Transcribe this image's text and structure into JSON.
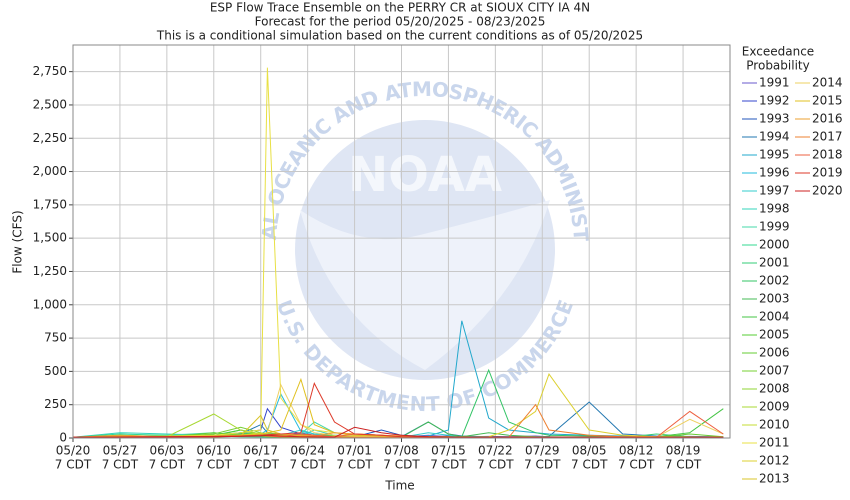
{
  "chart_data": {
    "type": "line",
    "title": "ESP Flow Trace Ensemble on the PERRY CR at SIOUX CITY IA 4N",
    "subtitle": [
      "Forecast for the period 05/20/2025 - 08/23/2025",
      "This is a conditional simulation based on the current conditions as of 05/20/2025"
    ],
    "x_label": "Time",
    "y_label": "Flow (CFS)",
    "legend_title": [
      "Exceedance",
      "Probability"
    ],
    "watermark": {
      "logo": "NOAA",
      "ring_top": "NATIONAL OCEANIC AND ATMOSPHERIC ADMINISTRATION",
      "ring_bottom": "U.S. DEPARTMENT OF COMMERCE"
    },
    "grid": true,
    "xlim": [
      "05/20",
      "08/26"
    ],
    "xticks": [
      "05/20",
      "05/27",
      "06/03",
      "06/10",
      "06/17",
      "06/24",
      "07/01",
      "07/08",
      "07/15",
      "07/22",
      "07/29",
      "08/05",
      "08/12",
      "08/19"
    ],
    "xtick_sublabel": "7 CDT",
    "ylim": [
      0,
      2950
    ],
    "yticks": [
      0,
      250,
      500,
      750,
      {
        "value": 1000,
        "label": "1,000"
      },
      {
        "value": 1250,
        "label": "1,250"
      },
      {
        "value": 1500,
        "label": "1,500"
      },
      {
        "value": 1750,
        "label": "1,750"
      },
      {
        "value": 2000,
        "label": "2,000"
      },
      {
        "value": 2250,
        "label": "2,250"
      },
      {
        "value": 2500,
        "label": "2,500"
      },
      {
        "value": 2750,
        "label": "2,750"
      }
    ],
    "x": [
      "05/20",
      "05/27",
      "06/03",
      "06/10",
      "06/14",
      "06/17",
      "06/18",
      "06/20",
      "06/23",
      "06/25",
      "06/28",
      "07/01",
      "07/05",
      "07/08",
      "07/12",
      "07/15",
      "07/17",
      "07/21",
      "07/24",
      "07/28",
      "07/30",
      "08/05",
      "08/10",
      "08/15",
      "08/20",
      "08/25"
    ],
    "series": [
      {
        "name": "1991",
        "color": "#6a5acd",
        "values": [
          5,
          8,
          12,
          10,
          30,
          15,
          12,
          10,
          40,
          20,
          15,
          10,
          12,
          8,
          20,
          10,
          8,
          12,
          10,
          15,
          10,
          8,
          6,
          10,
          12,
          8
        ]
      },
      {
        "name": "1992",
        "color": "#3344cc",
        "values": [
          6,
          10,
          15,
          20,
          40,
          60,
          220,
          80,
          30,
          20,
          15,
          12,
          10,
          8,
          10,
          15,
          10,
          8,
          6,
          10,
          8,
          6,
          8,
          5,
          10,
          6
        ]
      },
      {
        "name": "1993",
        "color": "#2255bb",
        "values": [
          4,
          6,
          10,
          8,
          20,
          25,
          30,
          20,
          15,
          12,
          10,
          8,
          60,
          20,
          10,
          8,
          6,
          10,
          8,
          6,
          5,
          8,
          6,
          5,
          6,
          5
        ]
      },
      {
        "name": "1994",
        "color": "#2277b0",
        "values": [
          5,
          8,
          10,
          12,
          30,
          100,
          40,
          20,
          15,
          10,
          12,
          10,
          8,
          10,
          120,
          30,
          15,
          10,
          8,
          10,
          12,
          270,
          30,
          15,
          10,
          8
        ]
      },
      {
        "name": "1995",
        "color": "#22a8cc",
        "values": [
          3,
          5,
          8,
          10,
          12,
          15,
          20,
          25,
          20,
          15,
          10,
          8,
          10,
          12,
          15,
          60,
          880,
          150,
          60,
          40,
          30,
          20,
          15,
          12,
          10,
          8
        ]
      },
      {
        "name": "1996",
        "color": "#22bbdd",
        "values": [
          5,
          8,
          10,
          15,
          20,
          30,
          60,
          330,
          50,
          30,
          20,
          15,
          10,
          8,
          6,
          10,
          8,
          6,
          5,
          8,
          6,
          5,
          6,
          5,
          4,
          5
        ]
      },
      {
        "name": "1997",
        "color": "#33cccc",
        "values": [
          4,
          6,
          8,
          10,
          40,
          20,
          15,
          20,
          60,
          30,
          15,
          10,
          8,
          6,
          40,
          20,
          10,
          8,
          6,
          5,
          6,
          5,
          4,
          5,
          6,
          4
        ]
      },
      {
        "name": "1998",
        "color": "#33d4bb",
        "values": [
          5,
          40,
          30,
          20,
          15,
          10,
          8,
          10,
          15,
          60,
          20,
          15,
          10,
          8,
          6,
          10,
          8,
          6,
          5,
          6,
          5,
          4,
          5,
          4,
          5,
          4
        ]
      },
      {
        "name": "1999",
        "color": "#44d8aa",
        "values": [
          6,
          10,
          20,
          40,
          20,
          15,
          10,
          8,
          30,
          120,
          40,
          20,
          15,
          10,
          8,
          6,
          10,
          8,
          6,
          5,
          6,
          5,
          4,
          5,
          4,
          5
        ]
      },
      {
        "name": "2000",
        "color": "#33d890",
        "values": [
          5,
          30,
          20,
          15,
          10,
          8,
          6,
          10,
          8,
          6,
          15,
          10,
          8,
          6,
          5,
          10,
          8,
          6,
          5,
          4,
          5,
          6,
          4,
          5,
          4,
          5
        ]
      },
      {
        "name": "2001",
        "color": "#33cc77",
        "values": [
          4,
          6,
          8,
          10,
          12,
          20,
          25,
          30,
          20,
          15,
          10,
          8,
          6,
          5,
          6,
          8,
          6,
          5,
          4,
          5,
          6,
          5,
          4,
          30,
          10,
          6
        ]
      },
      {
        "name": "2002",
        "color": "#33c466",
        "values": [
          5,
          8,
          10,
          20,
          60,
          30,
          20,
          15,
          10,
          12,
          10,
          8,
          6,
          10,
          8,
          6,
          10,
          510,
          120,
          40,
          20,
          15,
          10,
          8,
          6,
          5
        ]
      },
      {
        "name": "2003",
        "color": "#44bb55",
        "values": [
          4,
          6,
          10,
          8,
          30,
          20,
          15,
          10,
          8,
          6,
          10,
          8,
          6,
          5,
          120,
          30,
          10,
          40,
          20,
          10,
          8,
          6,
          5,
          6,
          5,
          4
        ]
      },
      {
        "name": "2004",
        "color": "#44c444",
        "values": [
          5,
          8,
          10,
          20,
          40,
          30,
          20,
          15,
          10,
          8,
          10,
          8,
          6,
          5,
          6,
          8,
          6,
          5,
          4,
          5,
          6,
          5,
          4,
          10,
          40,
          220
        ]
      },
      {
        "name": "2005",
        "color": "#55cc33",
        "values": [
          4,
          20,
          10,
          15,
          60,
          25,
          20,
          15,
          30,
          20,
          15,
          10,
          8,
          6,
          5,
          6,
          8,
          6,
          5,
          4,
          5,
          4,
          5,
          4,
          5,
          4
        ]
      },
      {
        "name": "2006",
        "color": "#66cc33",
        "values": [
          5,
          6,
          8,
          40,
          20,
          15,
          10,
          8,
          6,
          10,
          8,
          6,
          5,
          6,
          8,
          6,
          5,
          4,
          5,
          6,
          5,
          4,
          5,
          4,
          30,
          10
        ]
      },
      {
        "name": "2007",
        "color": "#77d033",
        "values": [
          6,
          8,
          10,
          30,
          80,
          40,
          20,
          15,
          10,
          8,
          6,
          8,
          6,
          5,
          6,
          5,
          4,
          5,
          6,
          5,
          4,
          5,
          4,
          5,
          4,
          5
        ]
      },
      {
        "name": "2008",
        "color": "#8fd433",
        "values": [
          5,
          10,
          15,
          20,
          25,
          30,
          40,
          30,
          20,
          15,
          10,
          8,
          6,
          5,
          4,
          5,
          6,
          5,
          4,
          5,
          6,
          5,
          4,
          5,
          4,
          5
        ]
      },
      {
        "name": "2009",
        "color": "#a8d833",
        "values": [
          6,
          8,
          10,
          180,
          60,
          30,
          20,
          15,
          10,
          8,
          6,
          8,
          6,
          5,
          6,
          8,
          6,
          5,
          4,
          5,
          6,
          5,
          4,
          5,
          4,
          5
        ]
      },
      {
        "name": "2010",
        "color": "#c4dc33",
        "values": [
          5,
          8,
          12,
          15,
          20,
          40,
          30,
          20,
          15,
          10,
          8,
          30,
          20,
          10,
          8,
          6,
          5,
          6,
          5,
          4,
          5,
          6,
          5,
          4,
          5,
          4
        ]
      },
      {
        "name": "2011",
        "color": "#e8e044",
        "values": [
          6,
          10,
          15,
          20,
          40,
          60,
          2780,
          300,
          100,
          60,
          40,
          30,
          20,
          15,
          10,
          8,
          6,
          5,
          6,
          5,
          4,
          5,
          4,
          5,
          4,
          5
        ]
      },
      {
        "name": "2012",
        "color": "#dcd030",
        "values": [
          5,
          8,
          10,
          12,
          15,
          20,
          25,
          20,
          15,
          12,
          10,
          8,
          6,
          5,
          6,
          8,
          6,
          10,
          60,
          200,
          480,
          60,
          20,
          10,
          8,
          6
        ]
      },
      {
        "name": "2013",
        "color": "#d8c428",
        "values": [
          4,
          6,
          8,
          10,
          15,
          170,
          60,
          30,
          20,
          15,
          10,
          8,
          6,
          5,
          6,
          5,
          4,
          5,
          6,
          5,
          4,
          5,
          4,
          5,
          4,
          5
        ]
      },
      {
        "name": "2014",
        "color": "#eed060",
        "values": [
          5,
          8,
          10,
          12,
          20,
          30,
          40,
          400,
          100,
          40,
          20,
          15,
          10,
          8,
          6,
          5,
          6,
          5,
          4,
          5,
          6,
          5,
          4,
          5,
          140,
          30
        ]
      },
      {
        "name": "2015",
        "color": "#e0c020",
        "values": [
          6,
          10,
          12,
          15,
          20,
          30,
          40,
          60,
          440,
          100,
          40,
          20,
          15,
          10,
          8,
          6,
          5,
          6,
          5,
          4,
          5,
          6,
          5,
          4,
          5,
          4
        ]
      },
      {
        "name": "2016",
        "color": "#eea030",
        "values": [
          5,
          20,
          10,
          8,
          15,
          20,
          25,
          30,
          20,
          15,
          40,
          30,
          20,
          15,
          10,
          8,
          6,
          5,
          6,
          5,
          4,
          5,
          4,
          5,
          6,
          5
        ]
      },
      {
        "name": "2017",
        "color": "#ee8030",
        "values": [
          4,
          6,
          8,
          10,
          15,
          20,
          15,
          10,
          8,
          10,
          8,
          6,
          5,
          6,
          8,
          6,
          5,
          4,
          5,
          250,
          60,
          20,
          10,
          8,
          6,
          5
        ]
      },
      {
        "name": "2018",
        "color": "#ee6040",
        "values": [
          5,
          8,
          10,
          12,
          15,
          20,
          15,
          10,
          30,
          20,
          10,
          30,
          20,
          10,
          8,
          6,
          5,
          6,
          5,
          4,
          5,
          6,
          5,
          4,
          200,
          30
        ]
      },
      {
        "name": "2019",
        "color": "#dd3a2a",
        "values": [
          6,
          8,
          10,
          12,
          15,
          20,
          25,
          30,
          40,
          410,
          120,
          30,
          20,
          10,
          8,
          6,
          5,
          6,
          5,
          4,
          5,
          6,
          5,
          4,
          5,
          4
        ]
      },
      {
        "name": "2020",
        "color": "#cc2222",
        "values": [
          5,
          6,
          8,
          10,
          12,
          15,
          20,
          15,
          10,
          8,
          6,
          80,
          40,
          20,
          10,
          8,
          6,
          5,
          6,
          5,
          4,
          5,
          4,
          5,
          6,
          5
        ]
      }
    ]
  }
}
